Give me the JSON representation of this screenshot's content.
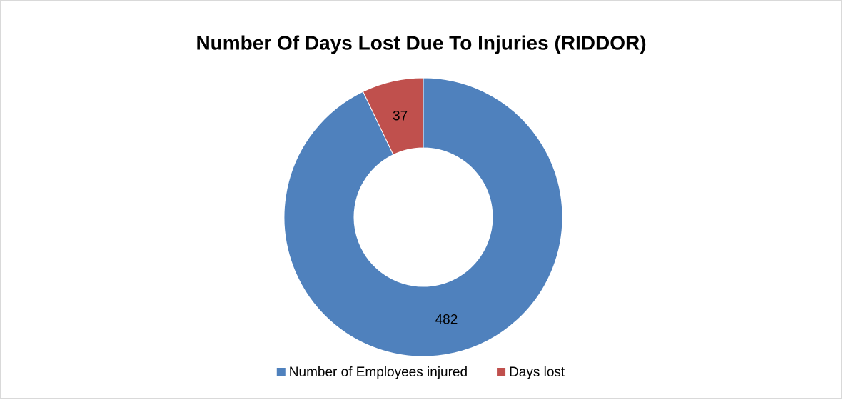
{
  "chart_data": {
    "type": "donut",
    "title": "Number Of Days Lost Due To Injuries (RIDDOR)",
    "categories": [
      "Number of Employees injured",
      "Days lost"
    ],
    "values": [
      482,
      37
    ],
    "colors": [
      "#4f81bd",
      "#c0504d"
    ],
    "legend": "bottom"
  }
}
